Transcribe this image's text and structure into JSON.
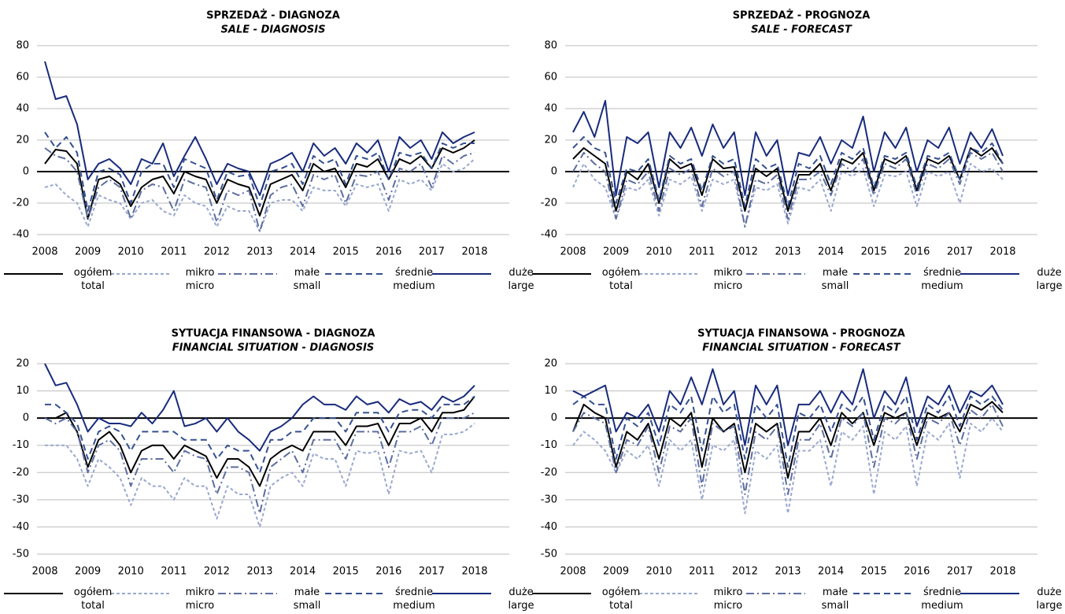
{
  "chart_data": [
    {
      "type": "line",
      "title": "SPRZEDAŻ - DIAGNOZA",
      "subtitle": "SALE - DIAGNOSIS",
      "categories": [
        "2008",
        null,
        null,
        null,
        "2009",
        null,
        null,
        null,
        "2010",
        null,
        null,
        null,
        "2011",
        null,
        null,
        null,
        "2012",
        null,
        null,
        null,
        "2013",
        null,
        null,
        null,
        "2014",
        null,
        null,
        null,
        "2015",
        null,
        null,
        null,
        "2016",
        null,
        null,
        null,
        "2017",
        null,
        null,
        null,
        "2018"
      ],
      "ylim": [
        -40,
        80
      ],
      "yticks": [
        -40,
        -20,
        0,
        20,
        40,
        60,
        80
      ],
      "grid": true,
      "series": [
        {
          "name": "ogółem\ntotal",
          "color": "#000000",
          "dash": "solid",
          "values": [
            5,
            14,
            13,
            5,
            -30,
            -5,
            -3,
            -8,
            -22,
            -10,
            -5,
            -3,
            -14,
            0,
            -3,
            -5,
            -20,
            -5,
            -8,
            -10,
            -28,
            -8,
            -5,
            -2,
            -12,
            5,
            0,
            2,
            -10,
            5,
            3,
            8,
            -5,
            8,
            5,
            10,
            2,
            15,
            12,
            15,
            20
          ]
        },
        {
          "name": "mikro\nmicro",
          "color": "#9aa8cf",
          "dash": "dash-short",
          "values": [
            -10,
            -8,
            -15,
            -20,
            -35,
            -15,
            -18,
            -20,
            -30,
            -20,
            -18,
            -25,
            -28,
            -15,
            -20,
            -22,
            -35,
            -22,
            -25,
            -25,
            -38,
            -20,
            -18,
            -18,
            -25,
            -10,
            -12,
            -12,
            -22,
            -8,
            -10,
            -8,
            -25,
            -5,
            -8,
            -5,
            -12,
            5,
            0,
            2,
            8
          ]
        },
        {
          "name": "małe\nsmall",
          "color": "#5d6e9f",
          "dash": "dash-dot",
          "values": [
            15,
            10,
            8,
            0,
            -30,
            -10,
            -5,
            -10,
            -30,
            -12,
            -8,
            -10,
            -25,
            -5,
            -8,
            -10,
            -32,
            -12,
            -15,
            -12,
            -38,
            -15,
            -10,
            -8,
            -22,
            -2,
            -5,
            -2,
            -20,
            -2,
            -3,
            0,
            -18,
            2,
            0,
            5,
            -10,
            10,
            5,
            10,
            12
          ]
        },
        {
          "name": "średnie\nmedium",
          "color": "#34508f",
          "dash": "dash",
          "values": [
            25,
            15,
            22,
            12,
            -25,
            0,
            2,
            -2,
            -20,
            0,
            5,
            5,
            -10,
            8,
            5,
            2,
            -18,
            0,
            -3,
            -2,
            -22,
            0,
            2,
            5,
            -8,
            10,
            5,
            8,
            -8,
            10,
            8,
            12,
            -5,
            12,
            10,
            12,
            2,
            18,
            15,
            18,
            18
          ]
        },
        {
          "name": "duże\nlarge",
          "color": "#182b7c",
          "dash": "solid",
          "values": [
            70,
            46,
            48,
            30,
            -5,
            5,
            8,
            2,
            -8,
            8,
            5,
            18,
            -3,
            10,
            22,
            8,
            -8,
            5,
            2,
            0,
            -15,
            5,
            8,
            12,
            0,
            18,
            10,
            15,
            5,
            18,
            12,
            20,
            0,
            22,
            15,
            20,
            8,
            25,
            18,
            22,
            25
          ]
        }
      ]
    },
    {
      "type": "line",
      "title": "SPRZEDAŻ - PROGNOZA",
      "subtitle": "SALE - FORECAST",
      "categories": [
        "2008",
        null,
        null,
        null,
        "2009",
        null,
        null,
        null,
        "2010",
        null,
        null,
        null,
        "2011",
        null,
        null,
        null,
        "2012",
        null,
        null,
        null,
        "2013",
        null,
        null,
        null,
        "2014",
        null,
        null,
        null,
        "2015",
        null,
        null,
        null,
        "2016",
        null,
        null,
        null,
        "2017",
        null,
        null,
        null,
        "2018"
      ],
      "ylim": [
        -40,
        80
      ],
      "yticks": [
        -40,
        -20,
        0,
        20,
        40,
        60,
        80
      ],
      "grid": true,
      "series": [
        {
          "name": "ogółem\ntotal",
          "color": "#000000",
          "dash": "solid",
          "values": [
            8,
            15,
            10,
            5,
            -25,
            0,
            -5,
            5,
            -20,
            8,
            2,
            5,
            -15,
            8,
            2,
            3,
            -25,
            2,
            -3,
            2,
            -25,
            -2,
            -2,
            5,
            -12,
            8,
            5,
            12,
            -12,
            8,
            5,
            10,
            -12,
            8,
            5,
            10,
            -5,
            15,
            10,
            15,
            5
          ]
        },
        {
          "name": "mikro\nmicro",
          "color": "#9aa8cf",
          "dash": "dash-short",
          "values": [
            -10,
            5,
            -5,
            -10,
            -30,
            -10,
            -12,
            -5,
            -28,
            -5,
            -8,
            -3,
            -25,
            -5,
            -8,
            -5,
            -35,
            -10,
            -12,
            -8,
            -33,
            -10,
            -12,
            -5,
            -25,
            0,
            -3,
            2,
            -22,
            -2,
            -3,
            0,
            -22,
            0,
            -3,
            0,
            -20,
            5,
            0,
            2,
            -5
          ]
        },
        {
          "name": "małe\nsmall",
          "color": "#5d6e9f",
          "dash": "dash-dot",
          "values": [
            0,
            12,
            5,
            0,
            -30,
            -5,
            -8,
            0,
            -25,
            2,
            -2,
            2,
            -22,
            2,
            -3,
            0,
            -35,
            -5,
            -8,
            -2,
            -30,
            -5,
            -5,
            0,
            -15,
            5,
            0,
            8,
            -15,
            5,
            2,
            8,
            -15,
            5,
            2,
            8,
            -8,
            12,
            8,
            12,
            0
          ]
        },
        {
          "name": "średnie\nmedium",
          "color": "#34508f",
          "dash": "dash",
          "values": [
            15,
            22,
            15,
            12,
            -20,
            2,
            0,
            8,
            -18,
            10,
            5,
            8,
            -12,
            10,
            5,
            8,
            -22,
            8,
            2,
            5,
            -22,
            5,
            2,
            10,
            -8,
            12,
            8,
            15,
            -10,
            10,
            8,
            12,
            -10,
            10,
            8,
            12,
            -5,
            15,
            12,
            18,
            5
          ]
        },
        {
          "name": "duże\nlarge",
          "color": "#182b7c",
          "dash": "solid",
          "values": [
            25,
            38,
            22,
            45,
            -15,
            22,
            18,
            25,
            -10,
            25,
            15,
            28,
            10,
            30,
            15,
            25,
            -15,
            25,
            10,
            20,
            -15,
            12,
            10,
            22,
            5,
            20,
            15,
            35,
            0,
            25,
            15,
            28,
            0,
            20,
            15,
            28,
            5,
            25,
            15,
            27,
            10
          ]
        }
      ]
    },
    {
      "type": "line",
      "title": "SYTUACJA FINANSOWA - DIAGNOZA",
      "subtitle": "FINANCIAL SITUATION - DIAGNOSIS",
      "categories": [
        "2008",
        null,
        null,
        null,
        "2009",
        null,
        null,
        null,
        "2010",
        null,
        null,
        null,
        "2011",
        null,
        null,
        null,
        "2012",
        null,
        null,
        null,
        "2013",
        null,
        null,
        null,
        "2014",
        null,
        null,
        null,
        "2015",
        null,
        null,
        null,
        "2016",
        null,
        null,
        null,
        "2017",
        null,
        null,
        null,
        "2018"
      ],
      "ylim": [
        -50,
        20
      ],
      "yticks": [
        -50,
        -40,
        -30,
        -20,
        -10,
        0,
        10,
        20
      ],
      "grid": true,
      "series": [
        {
          "name": "ogółem\ntotal",
          "color": "#000000",
          "dash": "solid",
          "values": [
            0,
            0,
            2,
            -5,
            -18,
            -8,
            -5,
            -10,
            -20,
            -12,
            -10,
            -10,
            -15,
            -10,
            -12,
            -14,
            -22,
            -15,
            -15,
            -18,
            -25,
            -15,
            -12,
            -10,
            -12,
            -5,
            -5,
            -5,
            -10,
            -3,
            -3,
            -2,
            -10,
            -2,
            -2,
            0,
            -5,
            2,
            2,
            3,
            8
          ]
        },
        {
          "name": "mikro\nmicro",
          "color": "#9aa8cf",
          "dash": "dash-short",
          "values": [
            -10,
            -10,
            -10,
            -15,
            -25,
            -15,
            -18,
            -22,
            -32,
            -22,
            -25,
            -25,
            -30,
            -22,
            -25,
            -25,
            -37,
            -25,
            -28,
            -28,
            -40,
            -25,
            -22,
            -20,
            -25,
            -13,
            -15,
            -15,
            -25,
            -12,
            -13,
            -12,
            -28,
            -12,
            -13,
            -12,
            -20,
            -6,
            -6,
            -5,
            -2
          ]
        },
        {
          "name": "małe\nsmall",
          "color": "#5d6e9f",
          "dash": "dash-dot",
          "values": [
            0,
            -2,
            0,
            -5,
            -20,
            -10,
            -8,
            -12,
            -25,
            -15,
            -15,
            -15,
            -20,
            -12,
            -14,
            -15,
            -28,
            -18,
            -18,
            -20,
            -35,
            -18,
            -15,
            -12,
            -20,
            -8,
            -8,
            -8,
            -15,
            -5,
            -5,
            -5,
            -18,
            -5,
            -5,
            -3,
            -10,
            0,
            0,
            0,
            2
          ]
        },
        {
          "name": "średnie\nmedium",
          "color": "#34508f",
          "dash": "dash",
          "values": [
            5,
            5,
            2,
            -2,
            -15,
            -5,
            -3,
            -5,
            -12,
            -5,
            -5,
            -5,
            -5,
            -8,
            -8,
            -8,
            -15,
            -10,
            -12,
            -12,
            -20,
            -8,
            -8,
            -5,
            -5,
            0,
            0,
            0,
            -5,
            2,
            2,
            2,
            -5,
            2,
            3,
            3,
            0,
            5,
            5,
            5,
            8
          ]
        },
        {
          "name": "duże\nlarge",
          "color": "#182b7c",
          "dash": "solid",
          "values": [
            20,
            12,
            13,
            5,
            -5,
            0,
            -2,
            -2,
            -3,
            2,
            -2,
            3,
            10,
            -3,
            -2,
            0,
            -5,
            0,
            -5,
            -8,
            -12,
            -5,
            -3,
            0,
            5,
            8,
            5,
            5,
            3,
            8,
            5,
            6,
            2,
            7,
            5,
            6,
            3,
            8,
            6,
            8,
            12
          ]
        }
      ]
    },
    {
      "type": "line",
      "title": "SYTUACJA FINANSOWA - PROGNOZA",
      "subtitle": "FINANCIAL SITUATION - FORECAST",
      "categories": [
        "2008",
        null,
        null,
        null,
        "2009",
        null,
        null,
        null,
        "2010",
        null,
        null,
        null,
        "2011",
        null,
        null,
        null,
        "2012",
        null,
        null,
        null,
        "2013",
        null,
        null,
        null,
        "2014",
        null,
        null,
        null,
        "2015",
        null,
        null,
        null,
        "2016",
        null,
        null,
        null,
        "2017",
        null,
        null,
        null,
        "2018"
      ],
      "ylim": [
        -50,
        20
      ],
      "yticks": [
        -50,
        -40,
        -30,
        -20,
        -10,
        0,
        10,
        20
      ],
      "grid": true,
      "series": [
        {
          "name": "ogółem\ntotal",
          "color": "#000000",
          "dash": "solid",
          "values": [
            -5,
            5,
            2,
            0,
            -18,
            -5,
            -8,
            -2,
            -15,
            0,
            -3,
            2,
            -18,
            0,
            -5,
            -2,
            -20,
            -2,
            -5,
            -2,
            -22,
            -5,
            -5,
            0,
            -10,
            2,
            -2,
            2,
            -10,
            2,
            0,
            2,
            -10,
            2,
            0,
            2,
            -5,
            5,
            3,
            6,
            2
          ]
        },
        {
          "name": "mikro\nmicro",
          "color": "#9aa8cf",
          "dash": "dash-short",
          "values": [
            -10,
            -5,
            -8,
            -12,
            -20,
            -12,
            -15,
            -10,
            -25,
            -8,
            -12,
            -8,
            -30,
            -10,
            -12,
            -8,
            -35,
            -12,
            -15,
            -10,
            -35,
            -12,
            -12,
            -8,
            -25,
            -5,
            -8,
            -3,
            -28,
            -5,
            -8,
            -3,
            -25,
            -5,
            -8,
            -2,
            -22,
            -2,
            -5,
            0,
            -5
          ]
        },
        {
          "name": "małe\nsmall",
          "color": "#5d6e9f",
          "dash": "dash-dot",
          "values": [
            -5,
            2,
            0,
            -2,
            -20,
            -8,
            -10,
            -3,
            -20,
            -3,
            -5,
            0,
            -25,
            -2,
            -5,
            -3,
            -28,
            -5,
            -8,
            -3,
            -28,
            -8,
            -8,
            -2,
            -15,
            0,
            -3,
            2,
            -18,
            0,
            -2,
            2,
            -15,
            0,
            -2,
            2,
            -10,
            3,
            0,
            5,
            -3
          ]
        },
        {
          "name": "średnie\nmedium",
          "color": "#34508f",
          "dash": "dash",
          "values": [
            5,
            8,
            5,
            5,
            -15,
            0,
            -3,
            2,
            -10,
            5,
            2,
            8,
            -12,
            8,
            2,
            5,
            -15,
            5,
            0,
            5,
            -18,
            2,
            0,
            5,
            -5,
            5,
            2,
            8,
            -8,
            5,
            2,
            8,
            -8,
            5,
            2,
            8,
            -3,
            8,
            5,
            8,
            3
          ]
        },
        {
          "name": "duże\nlarge",
          "color": "#182b7c",
          "dash": "solid",
          "values": [
            10,
            8,
            10,
            12,
            -5,
            2,
            0,
            5,
            -5,
            10,
            5,
            15,
            5,
            18,
            5,
            10,
            -10,
            12,
            5,
            12,
            -10,
            5,
            5,
            10,
            2,
            10,
            5,
            18,
            0,
            10,
            5,
            15,
            -3,
            8,
            5,
            12,
            2,
            10,
            8,
            12,
            5
          ]
        }
      ]
    }
  ]
}
